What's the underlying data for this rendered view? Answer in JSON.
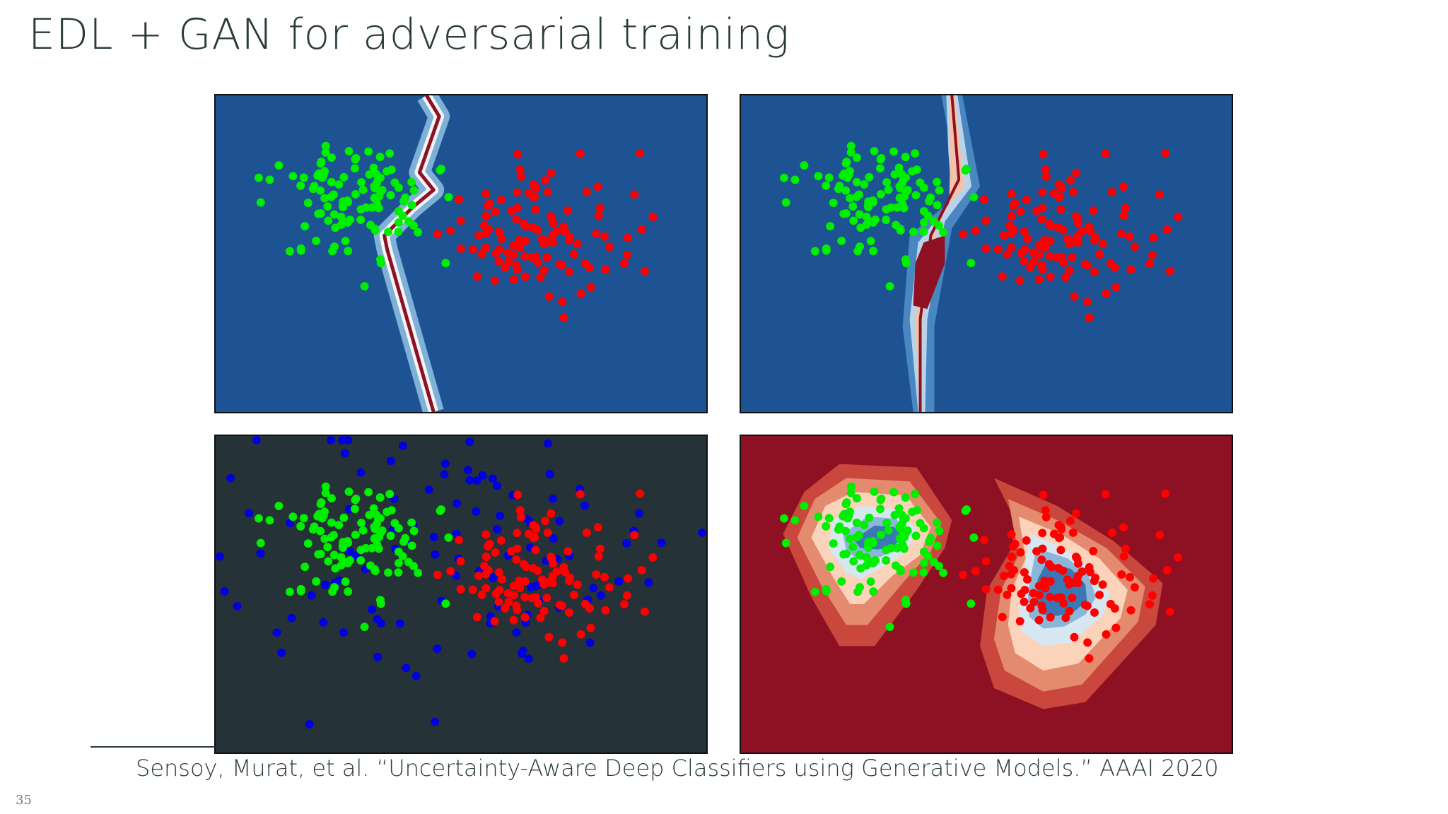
{
  "slide": {
    "title": "EDL + GAN for adversarial training",
    "citation": "Sensoy, Murat, et al. “Uncertainty-Aware Deep Classifiers using Generative Models.” AAAI 2020",
    "page_number": "35"
  },
  "colors": {
    "panel_blue": "#1d5393",
    "panel_dark": "#253237",
    "panel_red": "#8e1023",
    "green_points": "#00ee00",
    "red_points": "#ff0000",
    "blue_points": "#0000dd"
  },
  "figure_panels": [
    {
      "name": "top-left",
      "background": "panel_blue",
      "content": "two clusters with a thin decision boundary"
    },
    {
      "name": "top-right",
      "background": "panel_blue",
      "content": "two clusters with a wider uncertain boundary"
    },
    {
      "name": "bottom-left",
      "background": "panel_dark",
      "content": "green, red and blue generated samples"
    },
    {
      "name": "bottom-right",
      "background": "panel_red",
      "content": "uncertainty contours around both clusters"
    }
  ]
}
